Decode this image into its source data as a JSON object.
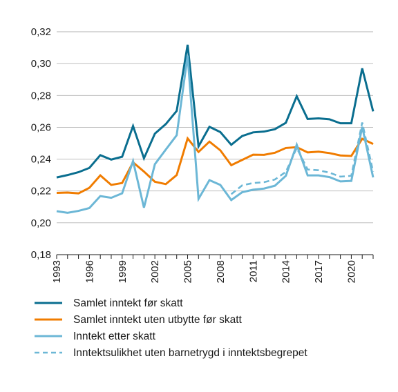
{
  "chart_data": {
    "type": "line",
    "x": [
      1993,
      1994,
      1995,
      1996,
      1997,
      1998,
      1999,
      2000,
      2001,
      2002,
      2003,
      2004,
      2005,
      2006,
      2007,
      2008,
      2009,
      2010,
      2011,
      2012,
      2013,
      2014,
      2015,
      2016,
      2017,
      2018,
      2019,
      2020,
      2021,
      2022
    ],
    "xticks": [
      "1993",
      "1996",
      "1999",
      "2002",
      "2005",
      "2008",
      "2011",
      "2014",
      "2017",
      "2020"
    ],
    "yticks": [
      "0,18",
      "0,20",
      "0,22",
      "0,24",
      "0,26",
      "0,28",
      "0,30",
      "0,32"
    ],
    "ylim": [
      0.18,
      0.32
    ],
    "xlim": [
      1993,
      2022
    ],
    "grid": true,
    "legend_position": "bottom",
    "series": [
      {
        "name": "Samlet inntekt før skatt",
        "color": "#0a6e8f",
        "dashed": false,
        "values": [
          0.2285,
          0.23,
          0.2318,
          0.2345,
          0.2425,
          0.2397,
          0.2415,
          0.2608,
          0.2405,
          0.256,
          0.262,
          0.2703,
          0.3118,
          0.248,
          0.2603,
          0.257,
          0.249,
          0.2545,
          0.2568,
          0.2573,
          0.2588,
          0.2628,
          0.2795,
          0.2652,
          0.2656,
          0.265,
          0.2625,
          0.2625,
          0.297,
          0.27
        ]
      },
      {
        "name": "Samlet inntekt uten utbytte før skatt",
        "color": "#f07c00",
        "dashed": false,
        "values": [
          0.2188,
          0.219,
          0.2185,
          0.222,
          0.2298,
          0.2238,
          0.225,
          0.238,
          0.2322,
          0.2258,
          0.2243,
          0.23,
          0.253,
          0.2445,
          0.251,
          0.2455,
          0.2362,
          0.2395,
          0.2428,
          0.2427,
          0.244,
          0.247,
          0.2475,
          0.2442,
          0.2447,
          0.2438,
          0.2423,
          0.242,
          0.2528,
          0.2495
        ]
      },
      {
        "name": "Inntekt etter skatt",
        "color": "#6cb7d6",
        "dashed": false,
        "values": [
          0.2073,
          0.2063,
          0.2075,
          0.2093,
          0.2168,
          0.2157,
          0.2185,
          0.2388,
          0.2095,
          0.2368,
          0.246,
          0.255,
          0.305,
          0.215,
          0.2268,
          0.2238,
          0.2143,
          0.2192,
          0.2208,
          0.2215,
          0.2233,
          0.2295,
          0.249,
          0.2298,
          0.2298,
          0.2287,
          0.226,
          0.2263,
          0.2603,
          0.2285
        ]
      },
      {
        "name": "Inntektsulikhet uten barnetrygd i inntektsbegrepet",
        "color": "#6cb7d6",
        "dashed": true,
        "values": [
          null,
          null,
          null,
          null,
          null,
          null,
          null,
          null,
          null,
          null,
          null,
          null,
          null,
          null,
          null,
          null,
          0.218,
          0.2235,
          0.225,
          0.2255,
          0.2272,
          0.232,
          0.247,
          0.2335,
          0.233,
          0.2315,
          0.229,
          0.2295,
          0.263,
          0.232
        ]
      }
    ]
  }
}
